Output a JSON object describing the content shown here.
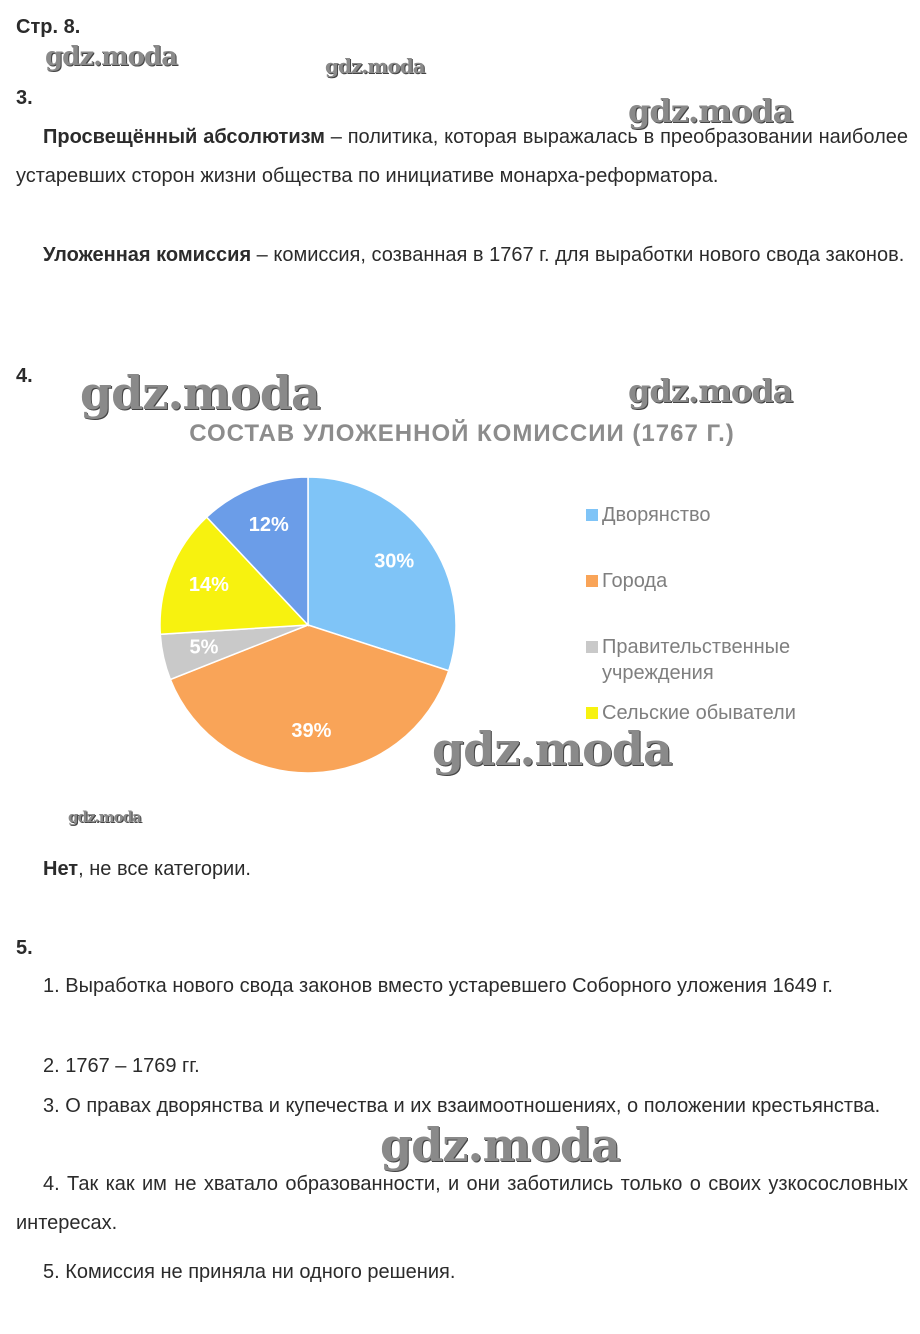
{
  "header": {
    "page": "Стр. 8."
  },
  "sections": [
    {
      "number": "3.",
      "paragraphs": [
        {
          "term": "Просвещённый абсолютизм",
          "text": " – политика, которая выражалась в преобразовании наиболее устаревших сторон жизни общества по инициативе монарха-реформатора."
        },
        {
          "term": "Уложенная комиссия",
          "text": " – комиссия, созванная в 1767 г. для выработки нового свода законов."
        }
      ]
    },
    {
      "number": "4.",
      "answer": {
        "term": "Нет",
        "text": ", не все категории."
      }
    },
    {
      "number": "5.",
      "items": [
        "1. Выработка нового свода законов вместо устаревшего Соборного уложения 1649 г.",
        "2. 1767 – 1769 гг.",
        "3. О правах дворянства и купечества и их взаимоотношениях, о положении крестьянства.",
        "4. Так как им не хватало образованности, и они заботились только о своих узкосословных интересах.",
        "5. Комиссия не приняла ни одного решения."
      ]
    }
  ],
  "chart_data": {
    "type": "pie",
    "title": "СОСТАВ УЛОЖЕННОЙ КОМИССИИ (1767 Г.)",
    "categories": [
      "Дворянство",
      "Города",
      "Правительственные учреждения",
      "Сельские обыватели",
      null
    ],
    "values": [
      30,
      39,
      5,
      14,
      12
    ],
    "value_labels": [
      "30%",
      "39%",
      "5%",
      "14%",
      "12%"
    ],
    "colors": [
      "#7fc4f7",
      "#f9a458",
      "#c9c9c9",
      "#f7f20f",
      "#6b9de8"
    ],
    "legend": "right"
  },
  "watermarks": [
    "gdz.moda",
    "gdz.moda",
    "gdz.moda",
    "gdz.moda",
    "gdz.moda",
    "gdz.moda",
    "gdz.moda",
    "gdz.moda"
  ]
}
